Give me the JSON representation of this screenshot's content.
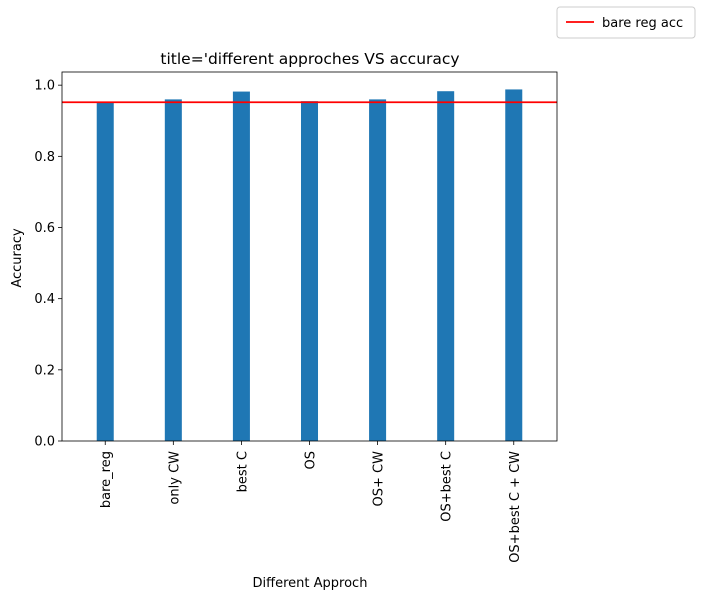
{
  "chart_data": {
    "type": "bar",
    "title": "title='different approches VS accuracy",
    "xlabel": "Different Approch",
    "ylabel": "Accuracy",
    "categories": [
      "bare_reg",
      "only CW",
      "best C",
      "OS",
      "OS+ CW",
      "OS+best C",
      "OS+best C + CW"
    ],
    "values": [
      0.952,
      0.96,
      0.982,
      0.955,
      0.96,
      0.983,
      0.988
    ],
    "ylim": [
      0,
      1.037
    ],
    "yticks": [
      0.0,
      0.2,
      0.4,
      0.6,
      0.8,
      1.0
    ],
    "ytick_labels": [
      "0.0",
      "0.2",
      "0.4",
      "0.6",
      "0.8",
      "1.0"
    ],
    "bar_color": "#1f77b4",
    "reference_line": {
      "label": "bare reg acc",
      "value": 0.952,
      "color": "#ff0000"
    },
    "legend": {
      "placement": "outside top-right",
      "entries": [
        "bare reg acc"
      ]
    },
    "grid": false
  }
}
